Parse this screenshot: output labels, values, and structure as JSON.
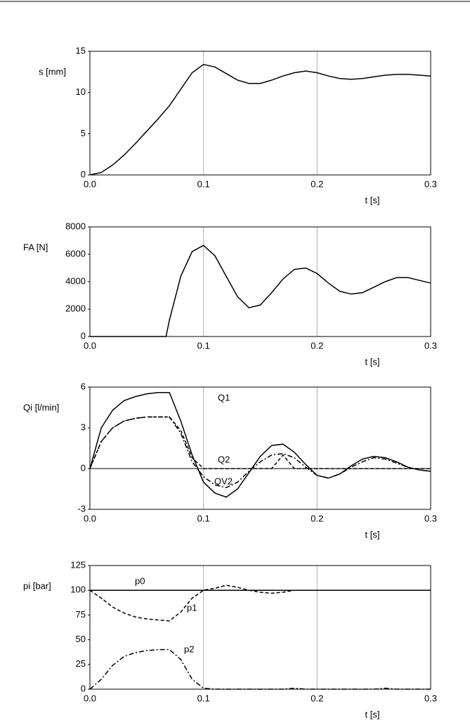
{
  "chart_data": [
    {
      "type": "line",
      "ylabel": "s [mm]",
      "xlabel": "t [s]",
      "x": [
        0,
        0.01,
        0.02,
        0.03,
        0.04,
        0.05,
        0.06,
        0.07,
        0.08,
        0.09,
        0.1,
        0.11,
        0.12,
        0.13,
        0.14,
        0.15,
        0.16,
        0.17,
        0.18,
        0.19,
        0.2,
        0.21,
        0.22,
        0.23,
        0.24,
        0.25,
        0.26,
        0.27,
        0.28,
        0.29,
        0.3
      ],
      "series": [
        {
          "name": "s",
          "color": "#000000",
          "style": "solid",
          "values": [
            0,
            0.3,
            1.2,
            2.4,
            3.8,
            5.3,
            6.8,
            8.4,
            10.4,
            12.4,
            13.4,
            13.1,
            12.3,
            11.5,
            11.1,
            11.1,
            11.5,
            12.0,
            12.4,
            12.6,
            12.4,
            12.0,
            11.7,
            11.6,
            11.7,
            11.9,
            12.1,
            12.2,
            12.2,
            12.1,
            12.0
          ]
        }
      ],
      "xlim": [
        0,
        0.3
      ],
      "xticks": [
        {
          "value": 0,
          "label": "0.0"
        },
        0.1,
        0.2,
        0.3
      ],
      "ylim": [
        0,
        15
      ],
      "yticks": [
        0,
        5,
        10,
        15
      ],
      "grid": "x"
    },
    {
      "type": "line",
      "ylabel": "FA [N]",
      "xlabel": "t [s]",
      "x": [
        0,
        0.01,
        0.02,
        0.03,
        0.04,
        0.05,
        0.06,
        0.067,
        0.07,
        0.08,
        0.09,
        0.1,
        0.11,
        0.12,
        0.13,
        0.14,
        0.15,
        0.16,
        0.17,
        0.18,
        0.19,
        0.2,
        0.21,
        0.22,
        0.23,
        0.24,
        0.25,
        0.26,
        0.27,
        0.28,
        0.29,
        0.3
      ],
      "series": [
        {
          "name": "FA",
          "color": "#000000",
          "style": "solid",
          "values": [
            0,
            0,
            0,
            0,
            0,
            0,
            0,
            0,
            1200,
            4400,
            6200,
            6650,
            5900,
            4400,
            2900,
            2100,
            2300,
            3200,
            4200,
            4900,
            5000,
            4600,
            3900,
            3300,
            3100,
            3200,
            3600,
            4000,
            4300,
            4300,
            4100,
            3900
          ]
        }
      ],
      "xlim": [
        0,
        0.3
      ],
      "xticks": [
        {
          "value": 0,
          "label": "0.0"
        },
        0.1,
        0.2,
        0.3
      ],
      "ylim": [
        0,
        8000
      ],
      "yticks": [
        0,
        2000,
        4000,
        6000,
        8000
      ],
      "grid": "x"
    },
    {
      "type": "line",
      "ylabel": "Qi [l/min]",
      "xlabel": "t [s]",
      "x": [
        0,
        0.01,
        0.02,
        0.03,
        0.04,
        0.05,
        0.06,
        0.07,
        0.08,
        0.09,
        0.1,
        0.11,
        0.12,
        0.13,
        0.14,
        0.15,
        0.16,
        0.17,
        0.18,
        0.19,
        0.2,
        0.21,
        0.22,
        0.23,
        0.24,
        0.25,
        0.26,
        0.27,
        0.28,
        0.29,
        0.3
      ],
      "series": [
        {
          "name": "Q1",
          "color": "#000000",
          "style": "solid",
          "values": [
            0,
            3.0,
            4.3,
            5.0,
            5.3,
            5.5,
            5.6,
            5.6,
            3.5,
            1.0,
            -1.0,
            -1.8,
            -2.1,
            -1.5,
            -0.3,
            0.9,
            1.7,
            1.8,
            1.2,
            0.3,
            -0.5,
            -0.7,
            -0.4,
            0.2,
            0.7,
            0.9,
            0.8,
            0.5,
            0.1,
            -0.1,
            -0.2
          ]
        },
        {
          "name": "Q2",
          "color": "#000000",
          "style": "dashed",
          "values": [
            0,
            2.0,
            3.0,
            3.5,
            3.7,
            3.8,
            3.8,
            3.8,
            2.8,
            0.8,
            0,
            0,
            0,
            0,
            0,
            0,
            0,
            1.0,
            0,
            0,
            0,
            0,
            0,
            0,
            0,
            0,
            0,
            0,
            0,
            0,
            0
          ]
        },
        {
          "name": "QV2",
          "color": "#000000",
          "style": "dashdot",
          "values": [
            0,
            2.0,
            3.0,
            3.5,
            3.7,
            3.8,
            3.8,
            3.8,
            2.6,
            0.5,
            -0.6,
            -1.2,
            -1.4,
            -1.0,
            -0.2,
            0.5,
            1.0,
            1.1,
            0.8,
            0.1,
            -0.5,
            -0.7,
            -0.4,
            0.1,
            0.5,
            0.8,
            0.7,
            0.4,
            0.1,
            -0.1,
            -0.2
          ]
        }
      ],
      "xlim": [
        0,
        0.3
      ],
      "xticks": [
        {
          "value": 0,
          "label": "0.0"
        },
        0.1,
        0.2,
        0.3
      ],
      "ylim": [
        -3,
        6
      ],
      "yticks": [
        -3,
        0,
        3,
        6
      ],
      "grid": "x",
      "zero_line": true
    },
    {
      "type": "line",
      "ylabel": "pi [bar]",
      "xlabel": "t [s]",
      "x": [
        0,
        0.01,
        0.02,
        0.03,
        0.04,
        0.05,
        0.06,
        0.07,
        0.08,
        0.09,
        0.1,
        0.11,
        0.12,
        0.13,
        0.14,
        0.15,
        0.16,
        0.17,
        0.18,
        0.19,
        0.2,
        0.21,
        0.22,
        0.23,
        0.24,
        0.25,
        0.26,
        0.27,
        0.28,
        0.29,
        0.3
      ],
      "series": [
        {
          "name": "p0",
          "color": "#000000",
          "style": "solid",
          "values": [
            100,
            100,
            100,
            100,
            100,
            100,
            100,
            100,
            100,
            100,
            100,
            100,
            100,
            100,
            100,
            100,
            100,
            100,
            100,
            100,
            100,
            100,
            100,
            100,
            100,
            100,
            100,
            100,
            100,
            100,
            100
          ]
        },
        {
          "name": "p1",
          "color": "#000000",
          "style": "dashed",
          "values": [
            100,
            92,
            83,
            77,
            73,
            71,
            70,
            69,
            78,
            92,
            100,
            102,
            105,
            103,
            100,
            98,
            97,
            98,
            100,
            100,
            100,
            100,
            100,
            100,
            100,
            100,
            100,
            100,
            100,
            100,
            100
          ]
        },
        {
          "name": "p2",
          "color": "#000000",
          "style": "dashdot",
          "values": [
            0,
            10,
            24,
            33,
            37,
            39,
            40,
            40,
            30,
            10,
            1,
            0,
            0,
            0,
            0,
            0,
            0,
            0,
            1,
            0,
            0,
            0,
            0,
            0,
            0,
            0,
            1,
            0,
            0,
            0,
            0
          ]
        }
      ],
      "xlim": [
        0,
        0.3
      ],
      "xticks": [
        {
          "value": 0,
          "label": "0.0"
        },
        0.1,
        0.2,
        0.3
      ],
      "ylim": [
        0,
        125
      ],
      "yticks": [
        0,
        25,
        50,
        75,
        100,
        125
      ],
      "grid": "x"
    }
  ]
}
